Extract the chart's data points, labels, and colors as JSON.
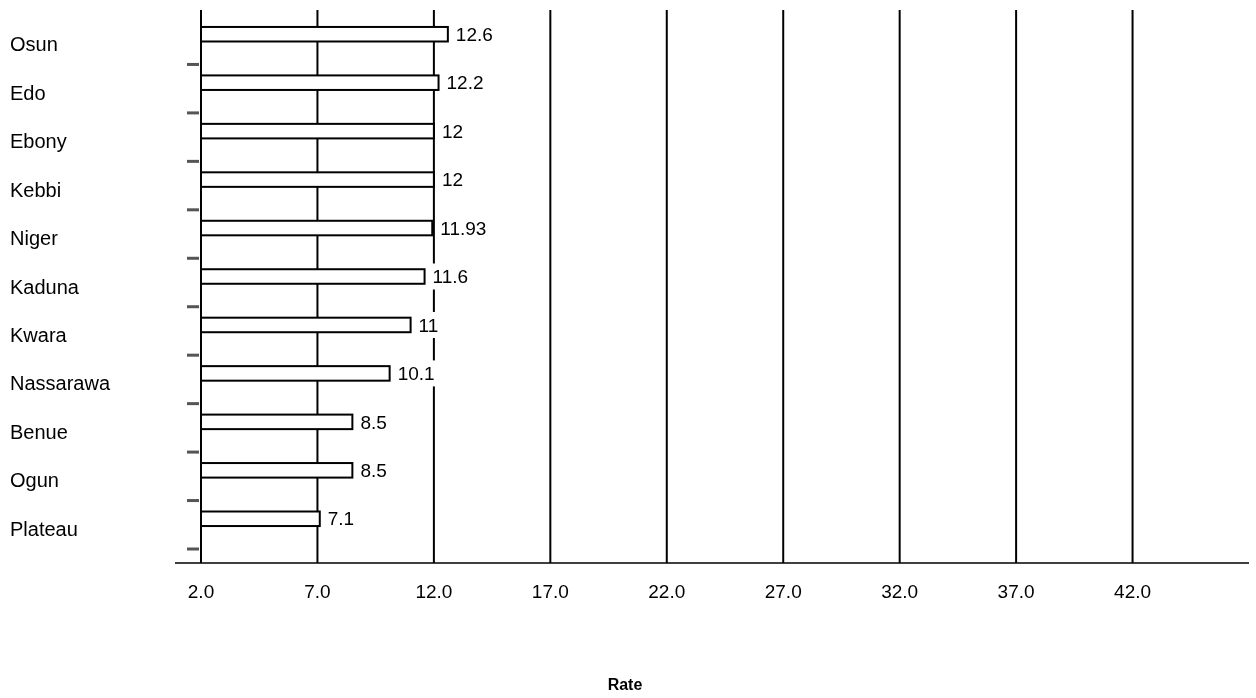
{
  "chart_data": {
    "type": "bar",
    "orientation": "horizontal",
    "xlabel": "Rate",
    "categories": [
      "Osun",
      "Edo",
      "Ebony",
      "Kebbi",
      "Niger",
      "Kaduna",
      "Kwara",
      "Nassarawa",
      "Benue",
      "Ogun",
      "Plateau"
    ],
    "values": [
      12.6,
      12.2,
      12,
      12,
      11.93,
      11.6,
      11,
      10.1,
      8.5,
      8.5,
      7.1
    ],
    "value_labels": [
      "12.6",
      "12.2",
      "12",
      "12",
      "11.93",
      "11.6",
      "11",
      "10.1",
      "8.5",
      "8.5",
      "7.1"
    ],
    "color": "#ffffff",
    "xlim": [
      2,
      47
    ],
    "xticks": [
      {
        "value": 2,
        "label": "2.0"
      },
      {
        "value": 7,
        "label": "7.0"
      },
      {
        "value": 12,
        "label": "12.0"
      },
      {
        "value": 17,
        "label": "17.0"
      },
      {
        "value": 22,
        "label": "22.0"
      },
      {
        "value": 27,
        "label": "27.0"
      },
      {
        "value": 32,
        "label": "32.0"
      },
      {
        "value": 37,
        "label": "37.0"
      },
      {
        "value": 42,
        "label": "42.0"
      }
    ],
    "grid": "x"
  }
}
